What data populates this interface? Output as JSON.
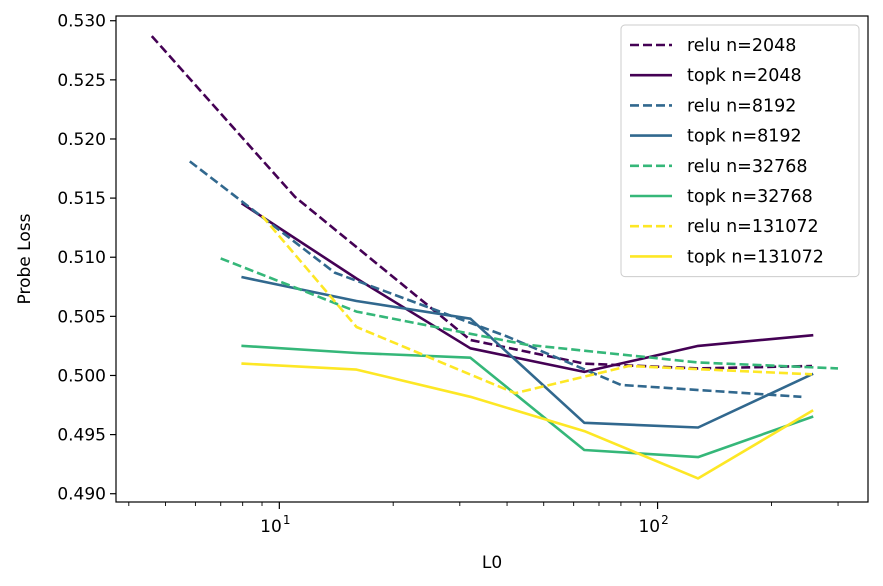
{
  "chart_data": {
    "type": "line",
    "xlabel": "L0",
    "ylabel": "Probe Loss",
    "xscale": "log",
    "xlim": [
      3.7,
      360
    ],
    "ylim": [
      0.4893,
      0.5304
    ],
    "x_ticks": [
      {
        "value": 10,
        "base": "10",
        "exp": "1"
      },
      {
        "value": 100,
        "base": "10",
        "exp": "2"
      }
    ],
    "y_ticks": [
      "0.490",
      "0.495",
      "0.500",
      "0.505",
      "0.510",
      "0.515",
      "0.520",
      "0.525",
      "0.530"
    ],
    "grid": false,
    "legend_position": "top-right",
    "series": [
      {
        "name": "relu n=2048",
        "color": "#440154",
        "dash": true,
        "x": [
          4.6,
          11,
          32,
          64,
          128,
          256
        ],
        "y": [
          0.5287,
          0.5151,
          0.503,
          0.501,
          0.5006,
          0.5008
        ]
      },
      {
        "name": "topk n=2048",
        "color": "#440154",
        "dash": false,
        "x": [
          8,
          16,
          32,
          64,
          128,
          256
        ],
        "y": [
          0.5145,
          0.5082,
          0.5023,
          0.5003,
          0.5025,
          0.5034
        ]
      },
      {
        "name": "relu n=8192",
        "color": "#31688e",
        "dash": true,
        "x": [
          5.8,
          14,
          40,
          80,
          240
        ],
        "y": [
          0.5181,
          0.5087,
          0.5033,
          0.4992,
          0.4982
        ]
      },
      {
        "name": "topk n=8192",
        "color": "#31688e",
        "dash": false,
        "x": [
          8,
          16,
          32,
          64,
          128,
          256
        ],
        "y": [
          0.5083,
          0.5063,
          0.5048,
          0.496,
          0.4956,
          0.5001
        ]
      },
      {
        "name": "relu n=32768",
        "color": "#35b779",
        "dash": true,
        "x": [
          7,
          16,
          45,
          128,
          300
        ],
        "y": [
          0.5099,
          0.5054,
          0.5026,
          0.5011,
          0.5006
        ]
      },
      {
        "name": "topk n=32768",
        "color": "#35b779",
        "dash": false,
        "x": [
          8,
          16,
          32,
          64,
          128,
          256
        ],
        "y": [
          0.5025,
          0.5019,
          0.5015,
          0.4937,
          0.4931,
          0.4965
        ]
      },
      {
        "name": "relu n=131072",
        "color": "#fde725",
        "dash": true,
        "x": [
          9,
          16,
          42,
          84,
          256
        ],
        "y": [
          0.5135,
          0.5041,
          0.4985,
          0.5008,
          0.5001
        ]
      },
      {
        "name": "topk n=131072",
        "color": "#fde725",
        "dash": false,
        "x": [
          8,
          16,
          32,
          64,
          128,
          256
        ],
        "y": [
          0.501,
          0.5005,
          0.4982,
          0.4953,
          0.4913,
          0.497
        ]
      }
    ]
  }
}
